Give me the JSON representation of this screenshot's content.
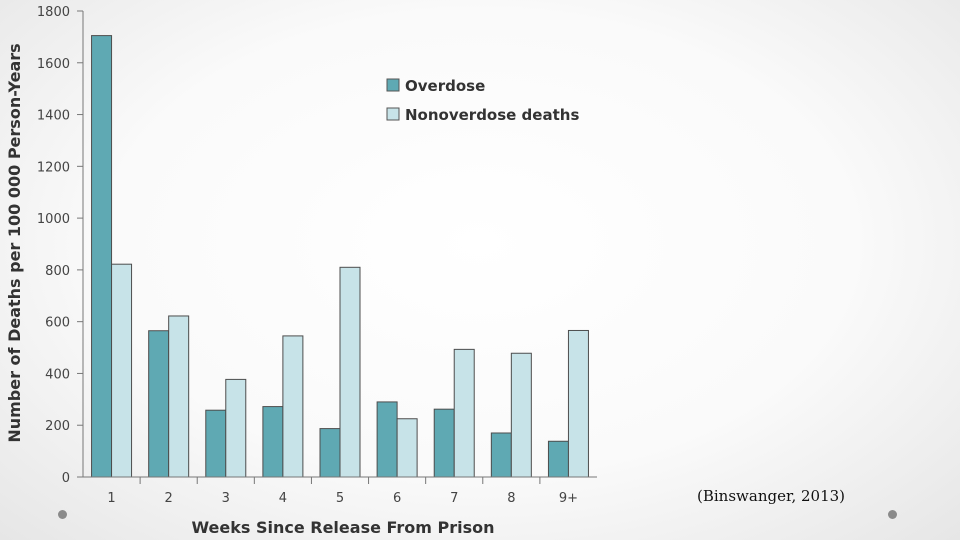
{
  "chart_data": {
    "type": "bar",
    "title": "",
    "categories": [
      "1",
      "2",
      "3",
      "4",
      "5",
      "6",
      "7",
      "8",
      "9+"
    ],
    "series": [
      {
        "name": "Overdose",
        "color": "#5fa9b3",
        "values": [
          1705,
          565,
          258,
          272,
          187,
          290,
          262,
          170,
          138
        ]
      },
      {
        "name": "Nonoverdose deaths",
        "color": "#c7e3e8",
        "values": [
          822,
          622,
          377,
          545,
          810,
          225,
          493,
          478,
          566
        ]
      }
    ],
    "xlabel": "Weeks Since Release From Prison",
    "ylabel": "Number of Deaths per 100 000 Person-Years",
    "ylim": [
      0,
      1800
    ],
    "yticks": [
      0,
      200,
      400,
      600,
      800,
      1000,
      1200,
      1400,
      1600,
      1800
    ],
    "grid": false,
    "legend": "top-center"
  },
  "citation": "(Binswanger, 2013)"
}
